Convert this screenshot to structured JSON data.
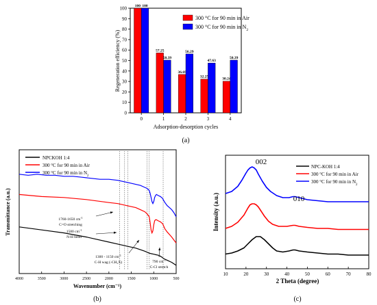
{
  "chart_data": [
    {
      "panel": "(a)",
      "type": "bar",
      "categories": [
        "0",
        "1",
        "2",
        "3",
        "4"
      ],
      "series": [
        {
          "name": "300 °C for 90 min in Air",
          "name_sub": "",
          "color": "#ff0000",
          "values": [
            100,
            57.25,
            36.69,
            32.25,
            30.24
          ]
        },
        {
          "name": "300 °C for 90 min in N",
          "name_sub": "2",
          "color": "#0000ff",
          "values": [
            100,
            50.39,
            56.29,
            47.63,
            50.39
          ]
        }
      ],
      "value_labels": [
        [
          "100",
          "57.25",
          "36.69",
          "32.25",
          "30.24"
        ],
        [
          "100",
          "50.39",
          "56.29",
          "47.63",
          "50.39"
        ]
      ],
      "xlabel": "Adsorption-desorption cycles",
      "ylabel": "Regeneration efficiency (%)",
      "ylim": [
        0,
        100
      ],
      "yticks": [
        "0",
        "10",
        "20",
        "30",
        "40",
        "50",
        "60",
        "70",
        "80",
        "90",
        "100"
      ],
      "legend": "top-right",
      "panel_label": "(a)"
    },
    {
      "panel": "(b)",
      "type": "line",
      "xlabel": "Wavenumber (cm⁻¹)",
      "ylabel": "Transmittance (a.u.)",
      "xlim": [
        4000,
        500
      ],
      "xticks": [
        "4000",
        "3500",
        "3000",
        "2500",
        "2000",
        "1500",
        "1000",
        "500"
      ],
      "series": [
        {
          "name": "NPCKOH 1:4",
          "name_sub": "",
          "color": "#000000",
          "x": [
            4000,
            3500,
            3000,
            2500,
            2000,
            1800,
            1600,
            1400,
            1200,
            1100,
            1050,
            1000,
            950,
            900,
            850,
            800,
            790,
            750,
            700,
            600,
            500
          ],
          "y": [
            0.38,
            0.35,
            0.32,
            0.28,
            0.23,
            0.21,
            0.19,
            0.17,
            0.14,
            0.12,
            0.115,
            0.11,
            0.105,
            0.1,
            0.09,
            0.075,
            0.07,
            0.06,
            0.05,
            0.03,
            0.0
          ]
        },
        {
          "name": "300 °C for 90 min in Air",
          "name_sub": "",
          "color": "#ff0000",
          "x": [
            4000,
            3500,
            3000,
            2500,
            2000,
            1800,
            1600,
            1400,
            1300,
            1200,
            1150,
            1100,
            1080,
            1060,
            1040,
            1020,
            1000,
            980,
            960,
            940,
            900,
            850,
            800,
            790,
            750,
            700,
            600,
            500
          ],
          "y": [
            0.7,
            0.68,
            0.67,
            0.65,
            0.62,
            0.61,
            0.59,
            0.57,
            0.55,
            0.53,
            0.51,
            0.48,
            0.42,
            0.35,
            0.32,
            0.34,
            0.4,
            0.44,
            0.45,
            0.45,
            0.44,
            0.43,
            0.41,
            0.4,
            0.36,
            0.33,
            0.28,
            0.22
          ]
        },
        {
          "name": "300 °C for 90 min in N",
          "name_sub": "2",
          "color": "#0000ff",
          "x": [
            4000,
            3800,
            3600,
            3400,
            3200,
            3000,
            2800,
            2600,
            2400,
            2200,
            2000,
            1800,
            1700,
            1600,
            1500,
            1400,
            1300,
            1200,
            1150,
            1100,
            1080,
            1060,
            1040,
            1020,
            1000,
            980,
            960,
            940,
            900,
            850,
            800,
            790,
            750,
            700,
            650,
            600,
            550,
            500
          ],
          "y": [
            0.9,
            0.89,
            0.9,
            0.89,
            0.89,
            0.88,
            0.88,
            0.87,
            0.86,
            0.85,
            0.85,
            0.84,
            0.83,
            0.82,
            0.81,
            0.8,
            0.79,
            0.77,
            0.76,
            0.74,
            0.71,
            0.67,
            0.63,
            0.61,
            0.63,
            0.67,
            0.69,
            0.7,
            0.69,
            0.68,
            0.66,
            0.65,
            0.62,
            0.59,
            0.57,
            0.55,
            0.52,
            0.48
          ]
        }
      ],
      "reference_lines": [
        1760,
        1650,
        1580,
        1150,
        1100,
        790
      ],
      "annotations": [
        {
          "text": "1760-1650  cm",
          "sup": "-1",
          "text2": "C=O stretching"
        },
        {
          "text": "1580 cm",
          "sup": "-1",
          "text2": "N-H bend"
        },
        {
          "text": "1300 - 1150 cm",
          "sup": "-1",
          "text2": "C-H wag (-CH₂X)"
        },
        {
          "text": "790  cm",
          "sup": "-1",
          "text2": "C-Cl stretch"
        }
      ],
      "legend": "top-left",
      "panel_label": "(b)"
    },
    {
      "panel": "(c)",
      "type": "line",
      "xlabel": "2 Theta (degree)",
      "ylabel": "Intensity (a.u.)",
      "xlim": [
        10,
        80
      ],
      "xticks": [
        "10",
        "20",
        "30",
        "40",
        "50",
        "60",
        "70",
        "80"
      ],
      "series": [
        {
          "name": "NPC-KOH 1:4",
          "name_sub": "",
          "color": "#000000",
          "x": [
            10,
            13,
            16,
            19,
            21,
            23,
            25,
            27,
            29,
            31,
            33,
            35,
            38,
            41,
            43,
            44,
            46,
            50,
            55,
            60,
            65,
            70,
            75,
            80
          ],
          "y": [
            0.09,
            0.1,
            0.12,
            0.15,
            0.19,
            0.23,
            0.26,
            0.26,
            0.23,
            0.19,
            0.15,
            0.12,
            0.11,
            0.12,
            0.13,
            0.13,
            0.12,
            0.11,
            0.1,
            0.09,
            0.09,
            0.08,
            0.08,
            0.08
          ]
        },
        {
          "name": "300 °C for 90 min in Air",
          "name_sub": "",
          "color": "#ff0000",
          "x": [
            10,
            13,
            16,
            19,
            21,
            22,
            23,
            24,
            25,
            26,
            27,
            29,
            31,
            33,
            36,
            40,
            43,
            44,
            46,
            50,
            55,
            60,
            65,
            70,
            75,
            80
          ],
          "y": [
            0.34,
            0.36,
            0.4,
            0.47,
            0.54,
            0.57,
            0.58,
            0.58,
            0.57,
            0.55,
            0.52,
            0.46,
            0.41,
            0.38,
            0.36,
            0.36,
            0.37,
            0.37,
            0.36,
            0.35,
            0.34,
            0.34,
            0.33,
            0.33,
            0.33,
            0.33
          ]
        },
        {
          "name": "300 °C for 90 min in N",
          "name_sub": "2",
          "color": "#0000ff",
          "x": [
            10,
            13,
            16,
            18,
            20,
            21,
            22,
            23,
            24,
            25,
            26,
            28,
            30,
            32,
            35,
            38,
            41,
            43,
            44,
            46,
            50,
            55,
            60,
            65,
            70,
            75,
            80
          ],
          "y": [
            0.68,
            0.7,
            0.75,
            0.81,
            0.88,
            0.91,
            0.93,
            0.94,
            0.93,
            0.91,
            0.87,
            0.8,
            0.74,
            0.7,
            0.66,
            0.64,
            0.64,
            0.65,
            0.65,
            0.64,
            0.62,
            0.61,
            0.6,
            0.6,
            0.6,
            0.6,
            0.6
          ]
        }
      ],
      "peak_labels": [
        "002",
        "010"
      ],
      "legend": "top-right",
      "panel_label": "(c)"
    }
  ]
}
